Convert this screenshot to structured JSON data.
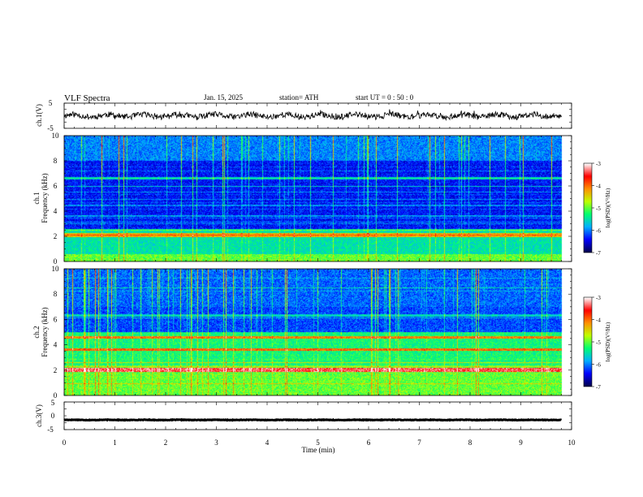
{
  "header": {
    "title": "VLF  Spectra",
    "date": "Jan. 15, 2025",
    "station": "station= ATH",
    "start_ut": "start  UT  =    0  : 50 : 0"
  },
  "chart_data": [
    {
      "type": "line",
      "ylabel": "ch.1(V)",
      "ylim": [
        -5,
        5
      ],
      "yticks": [
        "5",
        "-5"
      ],
      "series": [
        {
          "approx_level": 0,
          "approx_amplitude": 1.2
        }
      ]
    },
    {
      "type": "heatmap",
      "ylabel_line1": "ch.1",
      "ylabel_line2": "Frequency  (kHz)",
      "ylim": [
        0,
        10
      ],
      "yticks": [
        "10",
        "8",
        "6",
        "4",
        "2",
        "0"
      ],
      "colorbar": {
        "label": "log(PSD)(V²/Hz)",
        "range": [
          -7,
          -3
        ],
        "ticks": [
          "-3",
          "-4",
          "-5",
          "-6",
          "-7"
        ],
        "colors": [
          "#000050",
          "#0000ff",
          "#00b0ff",
          "#00ff70",
          "#c0ff00",
          "#ff9000",
          "#ff0000",
          "#ffffff"
        ]
      }
    },
    {
      "type": "heatmap",
      "ylabel_line1": "ch.2",
      "ylabel_line2": "Frequency  (kHz)",
      "ylim": [
        0,
        10
      ],
      "yticks": [
        "10",
        "8",
        "6",
        "4",
        "2",
        "0"
      ],
      "colorbar": {
        "label": "log(PSD)(V²/Hz)",
        "range": [
          -7,
          -3
        ],
        "ticks": [
          "-3",
          "-4",
          "-5",
          "-6",
          "-7"
        ],
        "colors": [
          "#000050",
          "#0000ff",
          "#00b0ff",
          "#00ff70",
          "#c0ff00",
          "#ff9000",
          "#ff0000",
          "#ffffff"
        ]
      }
    },
    {
      "type": "line",
      "ylabel": "ch.3(V)",
      "ylim": [
        -5,
        5
      ],
      "yticks": [
        "5",
        "0",
        "-5"
      ],
      "series": [
        {
          "approx_level": -1.5,
          "approx_amplitude": 0.1
        }
      ]
    }
  ],
  "xaxis": {
    "label": "Time  (min)",
    "xlim": [
      0,
      10
    ],
    "ticks": [
      "0",
      "1",
      "2",
      "3",
      "4",
      "5",
      "6",
      "7",
      "8",
      "9",
      "10"
    ],
    "data_end": 9.8
  }
}
